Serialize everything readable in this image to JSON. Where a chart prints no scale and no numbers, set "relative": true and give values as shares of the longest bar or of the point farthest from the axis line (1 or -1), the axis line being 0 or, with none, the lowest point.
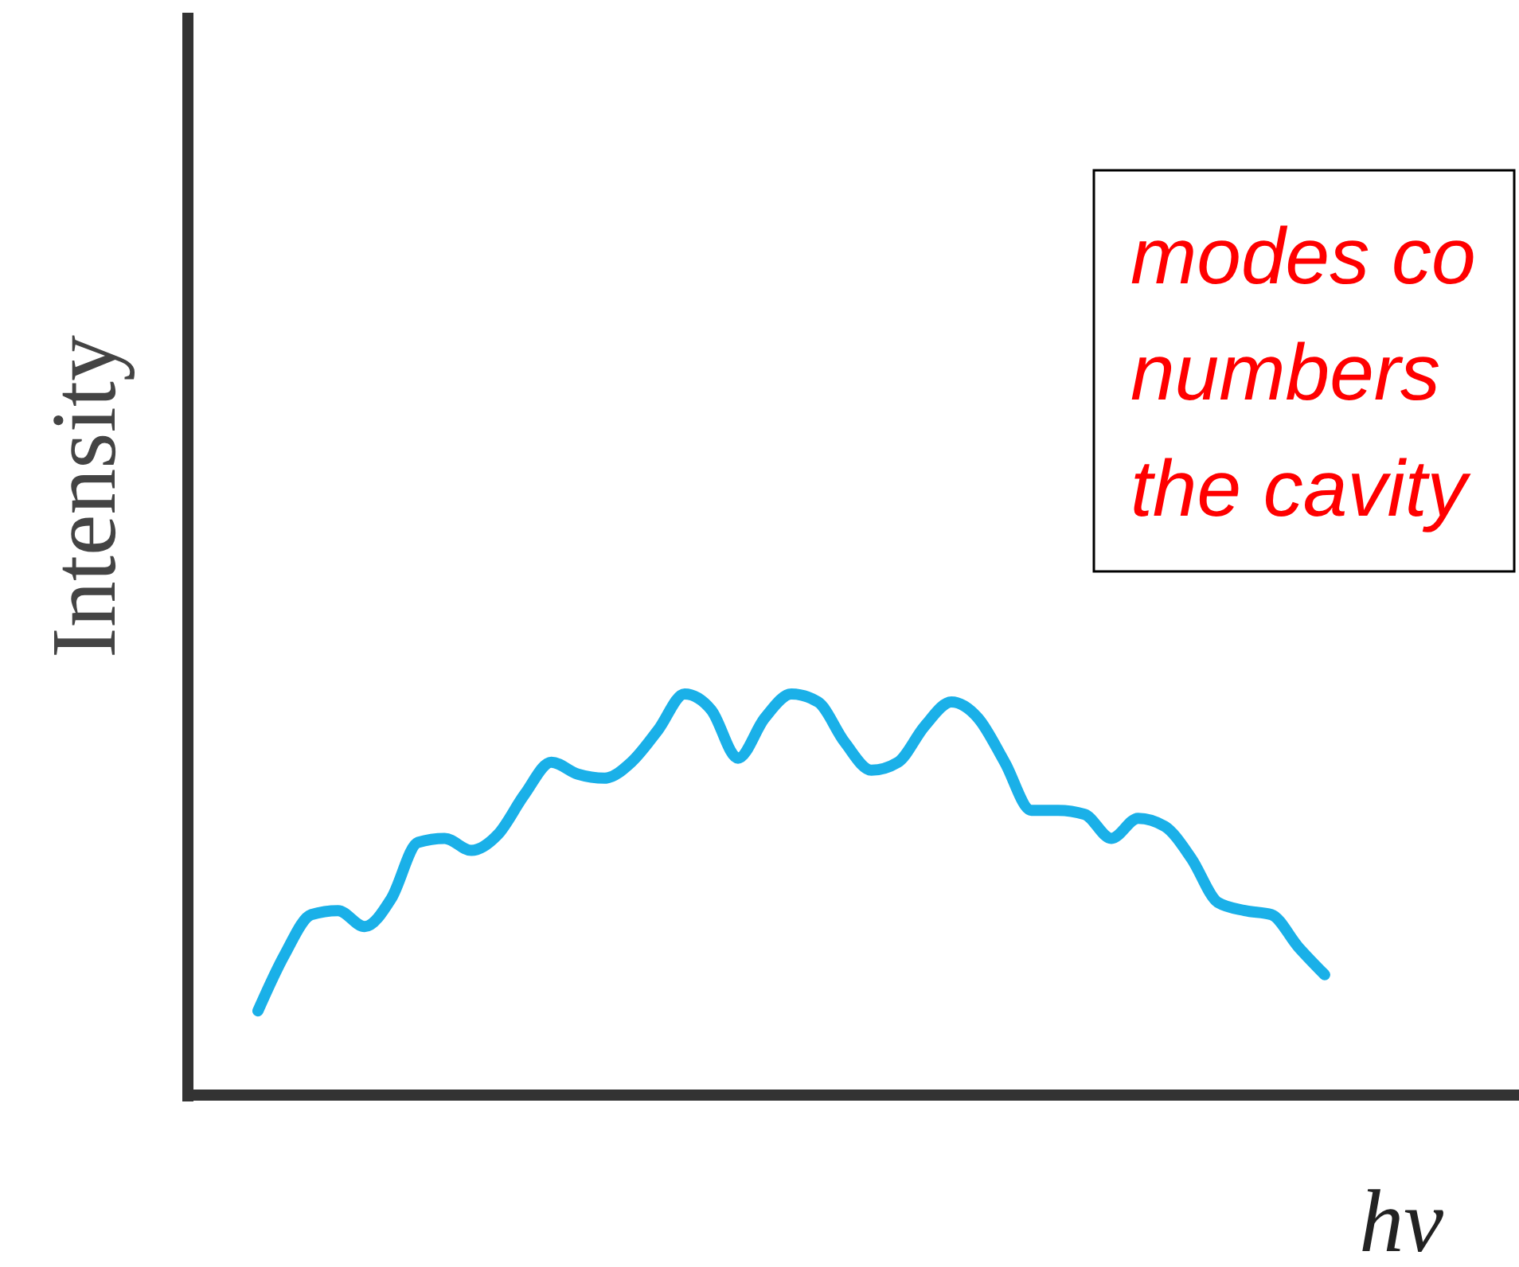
{
  "chart_data": {
    "type": "line",
    "relative": true,
    "xlabel": "hν",
    "ylabel": "Intensity",
    "annotations": [
      "modes co\nnumbers\nthe cavity"
    ],
    "categories": [
      null,
      null,
      null,
      null,
      null,
      null,
      null,
      null,
      null,
      null,
      null,
      null,
      null,
      null,
      null,
      null,
      null,
      null,
      null,
      null,
      null,
      null,
      null,
      null,
      null,
      null,
      null,
      null,
      null,
      null,
      null,
      null,
      null,
      null,
      null,
      null,
      null,
      null,
      null,
      null,
      null
    ],
    "series": [
      {
        "color": "#1ab0e8",
        "values": [
          0.21,
          0.35,
          0.45,
          0.46,
          0.42,
          0.49,
          0.63,
          0.64,
          0.61,
          0.65,
          0.75,
          0.83,
          0.8,
          0.79,
          0.83,
          0.91,
          1,
          0.96,
          0.84,
          0.94,
          1,
          0.98,
          0.88,
          0.81,
          0.83,
          0.92,
          0.98,
          0.94,
          0.83,
          0.71,
          0.71,
          0.7,
          0.64,
          0.69,
          0.67,
          0.59,
          0.48,
          0.46,
          0.45,
          0.37,
          0.3
        ]
      }
    ]
  }
}
